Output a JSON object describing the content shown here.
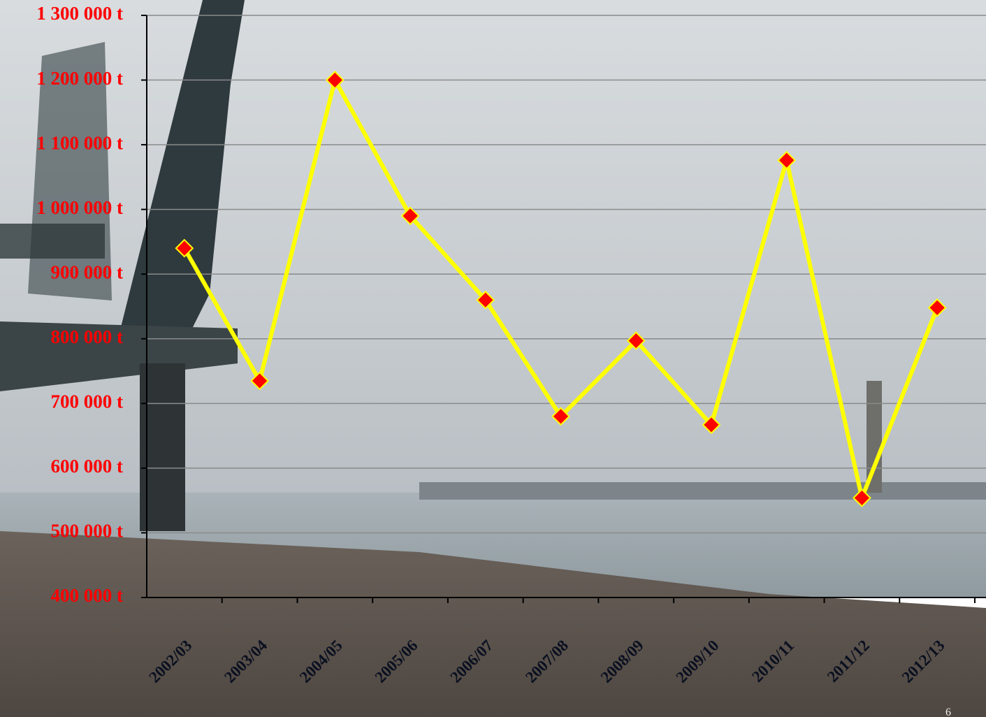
{
  "chart_data": {
    "type": "line",
    "categories": [
      "2002/03",
      "2003/04",
      "2004/05",
      "2005/06",
      "2006/07",
      "2007/08",
      "2008/09",
      "2009/10",
      "2010/11",
      "2011/12",
      "2012/13"
    ],
    "series": [
      {
        "name": null,
        "color": "#ffff00",
        "marker_color": "#ff0000",
        "values": [
          940000,
          735000,
          1200000,
          990000,
          860000,
          680000,
          797000,
          667000,
          1076000,
          554000,
          848000
        ]
      }
    ],
    "ylim": [
      400000,
      1300000
    ],
    "yticks": [
      {
        "value": 400000,
        "label": "400 000 t"
      },
      {
        "value": 500000,
        "label": "500 000 t"
      },
      {
        "value": 600000,
        "label": "600 000 t"
      },
      {
        "value": 700000,
        "label": "700 000 t"
      },
      {
        "value": 800000,
        "label": "800 000 t"
      },
      {
        "value": 900000,
        "label": "900 000 t"
      },
      {
        "value": 1000000,
        "label": "1 000 000 t"
      },
      {
        "value": 1100000,
        "label": "1 100 000 t"
      },
      {
        "value": 1200000,
        "label": "1 200 000 t"
      },
      {
        "value": 1300000,
        "label": "1 300 000 t"
      }
    ],
    "grid": true
  },
  "page_number": "6"
}
